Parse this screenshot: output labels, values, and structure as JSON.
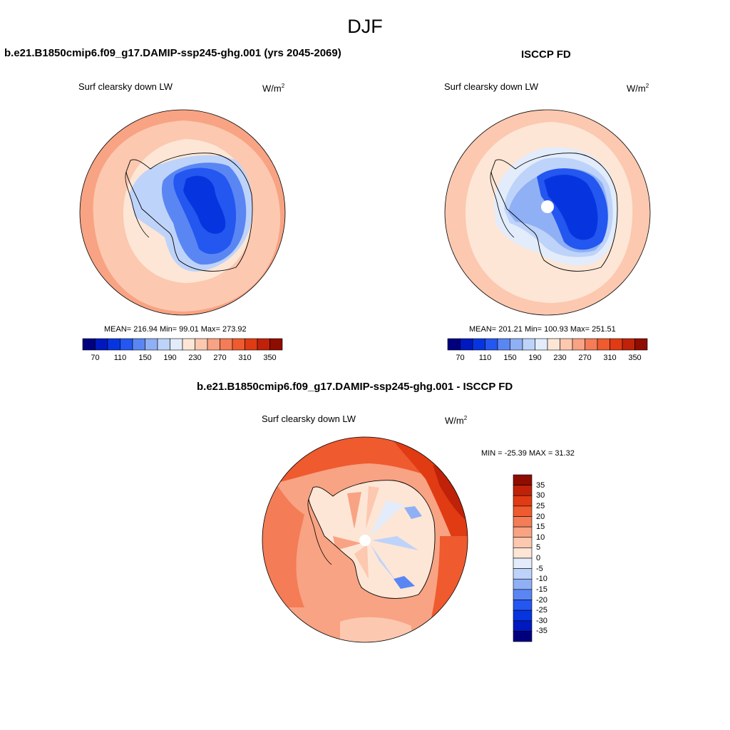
{
  "figure": {
    "season": "DJF"
  },
  "panels": [
    {
      "title": "b.e21.B1850cmip6.f09_g17.DAMIP-ssp245-ghg.001 (yrs 2045-2069)",
      "variable": "Surf clearsky down LW",
      "units": "W/m",
      "units_exp": "2",
      "stats_text": "MEAN= 216.94  Min=  99.01  Max= 273.92",
      "stats": {
        "mean": 216.94,
        "min": 99.01,
        "max": 273.92
      }
    },
    {
      "title": "ISCCP FD",
      "variable": "Surf clearsky down LW",
      "units": "W/m",
      "units_exp": "2",
      "stats_text": "MEAN= 201.21  Min= 100.93  Max= 251.51",
      "stats": {
        "mean": 201.21,
        "min": 100.93,
        "max": 251.51
      }
    },
    {
      "title": "b.e21.B1850cmip6.f09_g17.DAMIP-ssp245-ghg.001 - ISCCP FD",
      "variable": "Surf clearsky down LW",
      "units": "W/m",
      "units_exp": "2",
      "stats_text": "MIN = -25.39 MAX =  31.32",
      "stats": {
        "min": -25.39,
        "max": 31.32
      }
    }
  ],
  "colorbar_abs": {
    "tick_labels": [
      "70",
      "110",
      "150",
      "190",
      "230",
      "270",
      "310",
      "350"
    ],
    "colors": [
      "#00007f",
      "#0018c0",
      "#0635e0",
      "#2456f0",
      "#5a86f4",
      "#8fb0f5",
      "#bed3f9",
      "#e2ecfb",
      "#fde6d6",
      "#fcc8b0",
      "#f8a383",
      "#f47c56",
      "#ef5a2f",
      "#e03b13",
      "#bf2208",
      "#8f0c00"
    ]
  },
  "colorbar_diff": {
    "tick_labels": [
      "35",
      "30",
      "25",
      "20",
      "15",
      "10",
      "5",
      "0",
      "-5",
      "-10",
      "-15",
      "-20",
      "-25",
      "-30",
      "-35"
    ],
    "colors": [
      "#8f0c00",
      "#bf2208",
      "#e03b13",
      "#ef5a2f",
      "#f47c56",
      "#f8a383",
      "#fcc8b0",
      "#fde6d6",
      "#e2ecfb",
      "#bed3f9",
      "#8fb0f5",
      "#5a86f4",
      "#2456f0",
      "#0635e0",
      "#0018c0",
      "#00007f"
    ]
  }
}
